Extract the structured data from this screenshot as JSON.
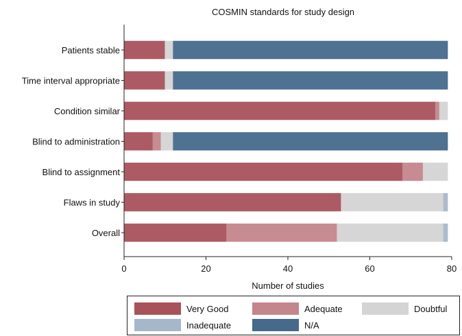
{
  "chart_data": {
    "type": "bar",
    "orientation": "horizontal",
    "stacked": true,
    "title": "COSMIN standards for study design",
    "xlabel": "Number of studies",
    "ylabel": "",
    "xlim": [
      0,
      80
    ],
    "xticks": [
      0,
      20,
      40,
      60,
      80
    ],
    "grid": false,
    "legend_position": "bottom",
    "categories": [
      "Patients stable",
      "Time interval appropriate",
      "Condition similar",
      "Blind to administration",
      "Blind to assignment",
      "Flaws in study",
      "Overall"
    ],
    "series": [
      {
        "name": "Very Good",
        "color": "#a8525c",
        "values": [
          10,
          10,
          76,
          7,
          68,
          53,
          25
        ]
      },
      {
        "name": "Adequate",
        "color": "#c4858c",
        "values": [
          0,
          0,
          1,
          2,
          5,
          0,
          27
        ]
      },
      {
        "name": "Doubtful",
        "color": "#d4d4d4",
        "values": [
          2,
          2,
          2,
          3,
          6,
          25,
          26
        ]
      },
      {
        "name": "Inadequate",
        "color": "#a6b7c9",
        "values": [
          0,
          0,
          0,
          0,
          0,
          1,
          1
        ]
      },
      {
        "name": "N/A",
        "color": "#46698c",
        "values": [
          67,
          67,
          0,
          67,
          0,
          0,
          0
        ]
      }
    ]
  }
}
